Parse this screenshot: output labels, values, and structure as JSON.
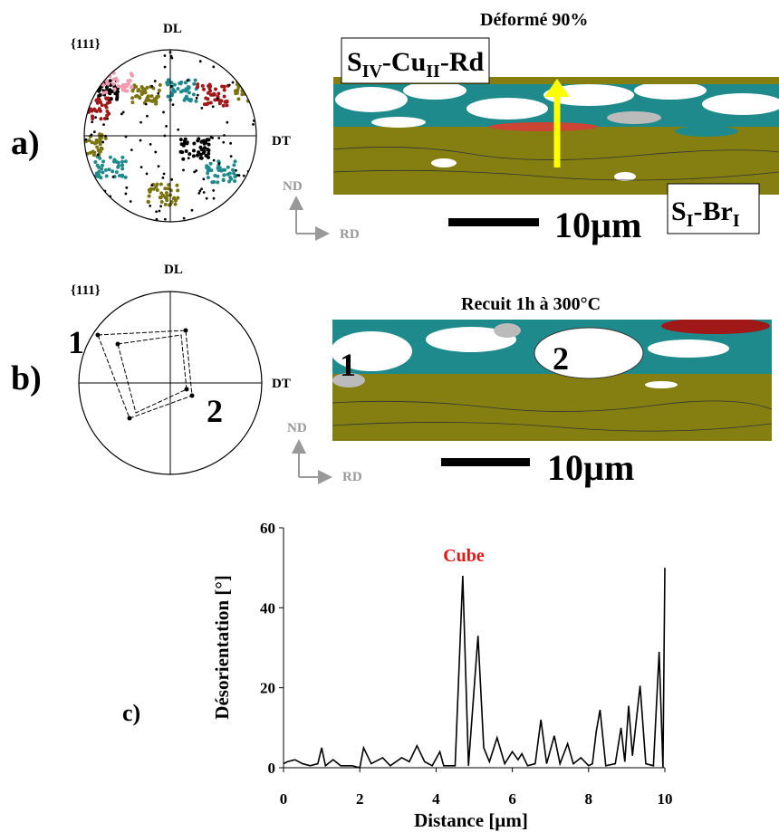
{
  "panel_a": {
    "label": "a)",
    "title": "Déformé 90%",
    "pole_figure": {
      "family": "{111}",
      "top": "DL",
      "right": "DT"
    },
    "axes": {
      "up": "ND",
      "right": "RD"
    },
    "scale_bar": "10µm",
    "box_top": [
      "S",
      "IV",
      "-Cu",
      "II",
      "-Rd"
    ],
    "box_bottom": [
      "S",
      "I",
      "-Br",
      "I"
    ]
  },
  "panel_b": {
    "label": "b)",
    "title": "Recuit 1h à 300°C",
    "pole_figure": {
      "family": "{111}",
      "top": "DL",
      "right": "DT",
      "points": [
        "1",
        "2"
      ]
    },
    "grains": [
      "1",
      "2"
    ],
    "axes": {
      "up": "ND",
      "right": "RD"
    },
    "scale_bar": "10µm"
  },
  "chart_data": {
    "type": "line",
    "label": "c)",
    "x_label": "Distance [µm]",
    "y_label": "Désorientation [°]",
    "annotation": "Cube",
    "annotation_color": "#e01818",
    "color": "#000000",
    "x": [
      0,
      0.1,
      0.3,
      0.5,
      0.7,
      0.9,
      1.0,
      1.1,
      1.3,
      1.5,
      1.8,
      2.0,
      2.1,
      2.3,
      2.6,
      2.8,
      3.1,
      3.3,
      3.5,
      3.7,
      3.9,
      4.1,
      4.2,
      4.5,
      4.7,
      4.85,
      5.1,
      5.25,
      5.4,
      5.6,
      5.8,
      6.0,
      6.15,
      6.25,
      6.4,
      6.6,
      6.75,
      6.9,
      7.1,
      7.25,
      7.45,
      7.6,
      7.8,
      8.0,
      8.1,
      8.2,
      8.3,
      8.45,
      8.7,
      8.85,
      8.95,
      9.05,
      9.15,
      9.35,
      9.5,
      9.7,
      9.85,
      9.95,
      10.0
    ],
    "values": [
      1,
      1.5,
      2,
      1,
      0.5,
      1,
      5,
      0.5,
      2,
      0.5,
      0.5,
      0,
      5,
      1,
      2.5,
      0.5,
      2.5,
      1.5,
      5.5,
      1.5,
      0.5,
      4,
      0.5,
      0.5,
      48,
      0.5,
      33,
      5,
      1.5,
      7.5,
      1,
      4,
      2,
      3.5,
      0.5,
      1,
      12,
      1,
      8,
      1,
      6,
      1,
      2.5,
      0.5,
      1,
      9,
      14.5,
      0.5,
      1,
      10,
      1.5,
      15.5,
      3,
      20.5,
      1,
      0.5,
      29,
      0,
      50
    ],
    "xlim": [
      0,
      10
    ],
    "ylim": [
      0,
      60
    ],
    "xticks": [
      0,
      2,
      4,
      6,
      8,
      10
    ],
    "yticks": [
      0,
      20,
      40,
      60
    ]
  }
}
